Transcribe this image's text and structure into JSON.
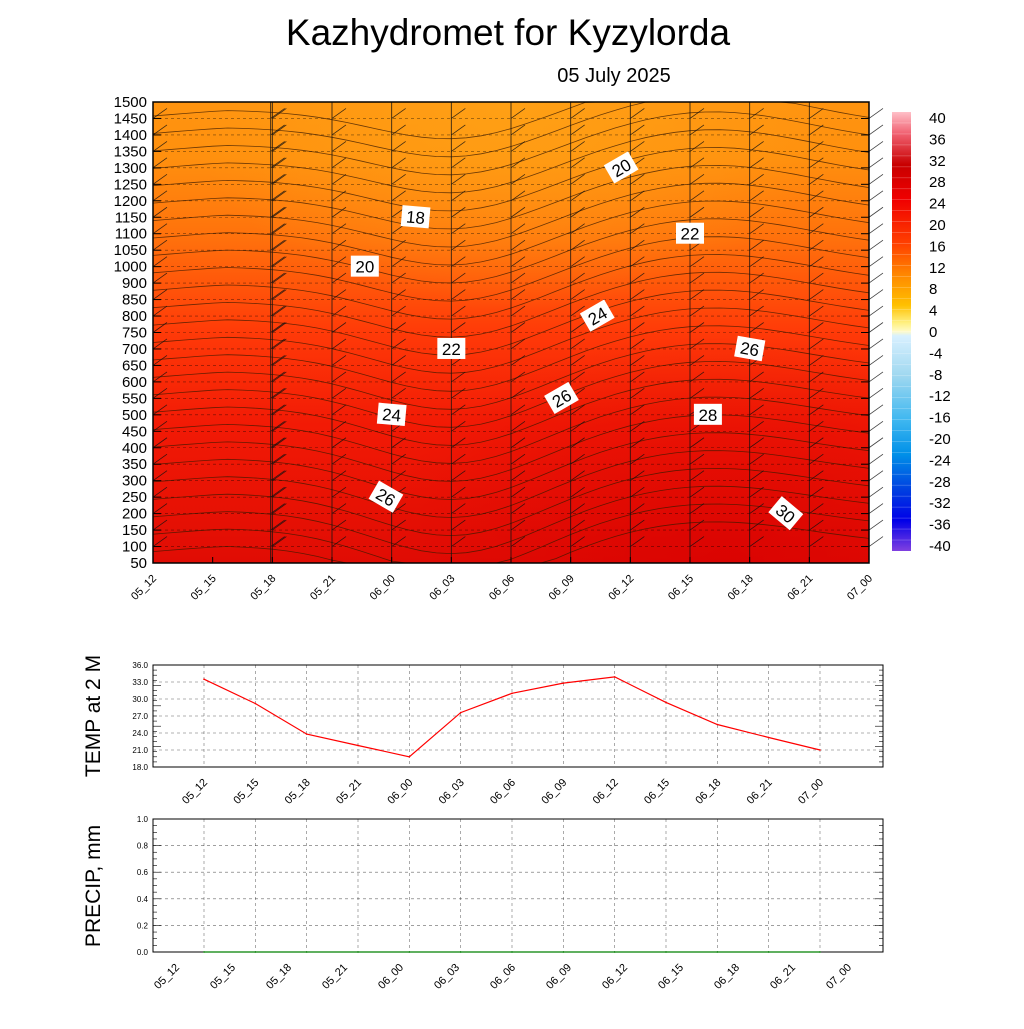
{
  "title": "Kazhydromet  for Kyzylorda",
  "subtitle": "05 July 2025",
  "chart_data": [
    {
      "type": "heatmap",
      "description_free": true,
      "y_ticks": [
        50,
        100,
        150,
        200,
        250,
        300,
        350,
        400,
        450,
        500,
        550,
        600,
        650,
        700,
        750,
        800,
        850,
        900,
        1000,
        1050,
        1100,
        1150,
        1200,
        1250,
        1300,
        1350,
        1400,
        1450,
        1500
      ],
      "x_ticks": [
        "05_12",
        "05_15",
        "05_18",
        "05_21",
        "06_00",
        "06_03",
        "06_06",
        "06_09",
        "06_12",
        "06_15",
        "06_18",
        "06_21",
        "07_00"
      ],
      "contour_labels": [
        {
          "text": "18",
          "time": 4.4,
          "level": 1150,
          "angle": 5
        },
        {
          "text": "20",
          "time": 3.55,
          "level": 1000,
          "angle": 0
        },
        {
          "text": "20",
          "time": 7.85,
          "level": 1300,
          "angle": -30
        },
        {
          "text": "22",
          "time": 5.0,
          "level": 700,
          "angle": 0
        },
        {
          "text": "22",
          "time": 9.0,
          "level": 1100,
          "angle": 0
        },
        {
          "text": "24",
          "time": 4.0,
          "level": 500,
          "angle": 5
        },
        {
          "text": "24",
          "time": 7.45,
          "level": 800,
          "angle": -30
        },
        {
          "text": "26",
          "time": 3.9,
          "level": 250,
          "angle": 30
        },
        {
          "text": "26",
          "time": 6.85,
          "level": 550,
          "angle": -30
        },
        {
          "text": "26",
          "time": 10.0,
          "level": 700,
          "angle": 10
        },
        {
          "text": "28",
          "time": 9.3,
          "level": 500,
          "angle": 0
        },
        {
          "text": "30",
          "time": 10.6,
          "level": 200,
          "angle": 40
        }
      ],
      "colorbar": {
        "labels": [
          "40",
          "36",
          "32",
          "28",
          "24",
          "20",
          "16",
          "12",
          "8",
          "4",
          "0",
          "-4",
          "-8",
          "-12",
          "-16",
          "-20",
          "-24",
          "-28",
          "-32",
          "-36",
          "-40"
        ],
        "range": [
          -40,
          40
        ]
      }
    },
    {
      "type": "line",
      "ylabel": "TEMP at 2 M",
      "ylim": [
        18.0,
        36.0
      ],
      "y_ticks": [
        "18.0",
        "21.0",
        "24.0",
        "27.0",
        "30.0",
        "33.0",
        "36.0"
      ],
      "categories": [
        "05_12",
        "05_15",
        "05_18",
        "05_21",
        "06_00",
        "06_03",
        "06_06",
        "06_09",
        "06_12",
        "06_15",
        "06_18",
        "06_21",
        "07_00"
      ],
      "values": [
        33.5,
        29.2,
        23.8,
        21.8,
        19.8,
        27.6,
        31.0,
        32.8,
        33.9,
        29.4,
        25.5,
        23.2,
        21.0
      ],
      "color": "#ff0000"
    },
    {
      "type": "line",
      "ylabel": "PRECIP, mm",
      "ylim": [
        0.0,
        1.0
      ],
      "y_ticks": [
        "0.0",
        "0.2",
        "0.4",
        "0.6",
        "0.8",
        "1.0"
      ],
      "categories": [
        "05_12",
        "05_15",
        "05_18",
        "05_21",
        "06_00",
        "06_03",
        "06_06",
        "06_09",
        "06_12",
        "06_15",
        "06_18",
        "06_21",
        "07_00"
      ],
      "values": [
        0,
        0,
        0,
        0,
        0,
        0,
        0,
        0,
        0,
        0,
        0,
        0,
        0
      ],
      "color": "#008000"
    }
  ]
}
